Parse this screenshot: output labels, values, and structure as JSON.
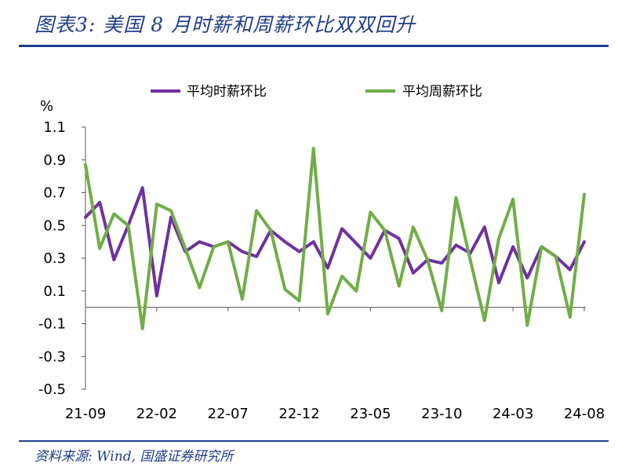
{
  "title": "图表3:  美国 8 月时薪和周薪环比双双回升",
  "source": "资料来源: Wind, 国盛证券研究所",
  "chart_data": {
    "type": "line",
    "unit_label": "%",
    "ylim": [
      -0.5,
      1.1
    ],
    "yticks": [
      1.1,
      0.9,
      0.7,
      0.5,
      0.3,
      0.1,
      -0.1,
      -0.3,
      -0.5
    ],
    "x": [
      "21-09",
      "21-10",
      "21-11",
      "21-12",
      "22-01",
      "22-02",
      "22-03",
      "22-04",
      "22-05",
      "22-06",
      "22-07",
      "22-08",
      "22-09",
      "22-10",
      "22-11",
      "22-12",
      "23-01",
      "23-02",
      "23-03",
      "23-04",
      "23-05",
      "23-06",
      "23-07",
      "23-08",
      "23-09",
      "23-10",
      "23-11",
      "23-12",
      "24-01",
      "24-02",
      "24-03",
      "24-04",
      "24-05",
      "24-06",
      "24-07",
      "24-08"
    ],
    "xticks": [
      "21-09",
      "22-02",
      "22-07",
      "22-12",
      "23-05",
      "23-10",
      "24-03",
      "24-08"
    ],
    "legend_position": "top",
    "series": [
      {
        "name": "平均时薪环比",
        "color": "#7030a0",
        "values": [
          0.55,
          0.64,
          0.29,
          0.5,
          0.73,
          0.07,
          0.55,
          0.34,
          0.4,
          0.37,
          0.4,
          0.34,
          0.31,
          0.47,
          0.4,
          0.34,
          0.4,
          0.24,
          0.48,
          0.39,
          0.3,
          0.47,
          0.42,
          0.21,
          0.29,
          0.27,
          0.38,
          0.33,
          0.49,
          0.15,
          0.37,
          0.18,
          0.37,
          0.31,
          0.23,
          0.4
        ]
      },
      {
        "name": "平均周薪环比",
        "color": "#70ad47",
        "values": [
          0.87,
          0.36,
          0.57,
          0.5,
          -0.13,
          0.63,
          0.59,
          0.36,
          0.12,
          0.37,
          0.4,
          0.05,
          0.59,
          0.47,
          0.11,
          0.04,
          0.97,
          -0.04,
          0.19,
          0.1,
          0.58,
          0.47,
          0.13,
          0.49,
          0.29,
          -0.02,
          0.67,
          0.29,
          -0.08,
          0.42,
          0.66,
          -0.11,
          0.37,
          0.31,
          -0.06,
          0.69
        ]
      }
    ]
  }
}
